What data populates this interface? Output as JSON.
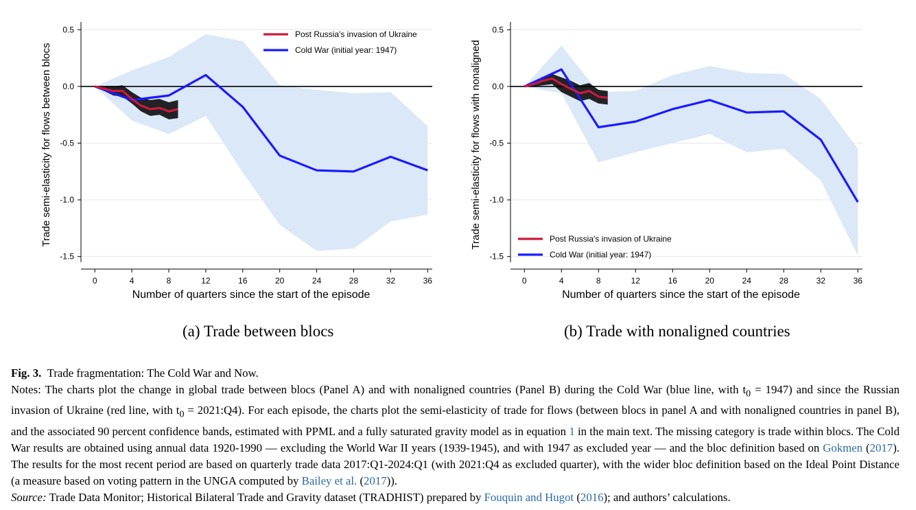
{
  "colors": {
    "cold_war": "#1a1aff",
    "post_invasion": "#cc1a3d",
    "band_cold_war": "#dbe8f8",
    "band_post": "#f0c7d2",
    "zero_line": "#000000",
    "grid": "#e6e6e6",
    "link": "#2a6aa8"
  },
  "chart_data": [
    {
      "panel_id": "a",
      "type": "line",
      "caption": "(a) Trade between blocs",
      "xlabel": "Number of quarters since the start of the episode",
      "ylabel": "Trade semi-elasticity for flows between blocs",
      "xticks": [
        "0",
        "4",
        "8",
        "12",
        "16",
        "20",
        "24",
        "28",
        "32",
        "36"
      ],
      "yticks": [
        "0.5",
        "0.0",
        "-0.5",
        "-1.0",
        "-1.5"
      ],
      "xlim": [
        -1.5,
        36.5
      ],
      "ylim": [
        -1.55,
        0.52
      ],
      "legend_position": "top-center",
      "grid": true,
      "series": [
        {
          "name": "Post Russia's invasion of Ukraine",
          "key": "post_invasion",
          "x": [
            0,
            1,
            2,
            3,
            4,
            5,
            6,
            7,
            8,
            9
          ],
          "y": [
            0.0,
            -0.02,
            -0.04,
            -0.04,
            -0.11,
            -0.17,
            -0.2,
            -0.19,
            -0.22,
            -0.2
          ],
          "band_lower": [
            0.0,
            -0.04,
            -0.08,
            -0.09,
            -0.15,
            -0.22,
            -0.26,
            -0.25,
            -0.29,
            -0.28
          ],
          "band_upper": [
            0.0,
            0.0,
            0.0,
            0.01,
            -0.05,
            -0.1,
            -0.12,
            -0.11,
            -0.14,
            -0.12
          ]
        },
        {
          "name": "Cold War (initial year: 1947)",
          "key": "cold_war",
          "x": [
            0,
            4,
            8,
            12,
            16,
            20,
            24,
            28,
            32,
            36
          ],
          "y": [
            0.0,
            -0.12,
            -0.08,
            0.1,
            -0.18,
            -0.61,
            -0.74,
            -0.75,
            -0.62,
            -0.74
          ],
          "band_lower": [
            0.0,
            -0.3,
            -0.42,
            -0.26,
            -0.76,
            -1.22,
            -1.45,
            -1.43,
            -1.19,
            -1.13
          ],
          "band_upper": [
            0.0,
            0.14,
            0.26,
            0.46,
            0.4,
            0.01,
            -0.03,
            -0.06,
            -0.05,
            -0.35
          ]
        }
      ]
    },
    {
      "panel_id": "b",
      "type": "line",
      "caption": "(b) Trade with nonaligned countries",
      "xlabel": "Number of quarters since the start of the episode",
      "ylabel": "Trade semi-elasticity for flows with nonaligned",
      "xticks": [
        "0",
        "4",
        "8",
        "12",
        "16",
        "20",
        "24",
        "28",
        "32",
        "36"
      ],
      "yticks": [
        "0.5",
        "0.0",
        "-0.5",
        "-1.0",
        "-1.5"
      ],
      "xlim": [
        -1.5,
        36.5
      ],
      "ylim": [
        -1.55,
        0.52
      ],
      "legend_position": "bottom-left",
      "grid": true,
      "series": [
        {
          "name": "Post Russia's invasion of Ukraine",
          "key": "post_invasion",
          "x": [
            0,
            1,
            2,
            3,
            4,
            5,
            6,
            7,
            8,
            9
          ],
          "y": [
            0.0,
            0.02,
            0.05,
            0.07,
            0.02,
            -0.02,
            -0.06,
            -0.04,
            -0.09,
            -0.1
          ],
          "band_lower": [
            0.0,
            0.0,
            0.01,
            0.02,
            -0.05,
            -0.09,
            -0.13,
            -0.11,
            -0.15,
            -0.16
          ],
          "band_upper": [
            0.0,
            0.04,
            0.08,
            0.11,
            0.08,
            0.05,
            0.01,
            0.03,
            -0.03,
            -0.04
          ]
        },
        {
          "name": "Cold War (initial year: 1947)",
          "key": "cold_war",
          "x": [
            0,
            4,
            8,
            12,
            16,
            20,
            24,
            28,
            32,
            36
          ],
          "y": [
            0.0,
            0.15,
            -0.36,
            -0.31,
            -0.2,
            -0.12,
            -0.23,
            -0.22,
            -0.47,
            -1.02
          ],
          "band_lower": [
            0.0,
            -0.06,
            -0.67,
            -0.58,
            -0.5,
            -0.42,
            -0.58,
            -0.55,
            -0.83,
            -1.49
          ],
          "band_upper": [
            0.0,
            0.36,
            -0.05,
            -0.04,
            0.1,
            0.18,
            0.12,
            0.11,
            -0.11,
            -0.55
          ]
        }
      ]
    }
  ],
  "figure": {
    "label": "Fig. 3.",
    "title": "Trade fragmentation: The Cold War and Now.",
    "notes": {
      "part1": "Notes: The charts plot the change in global trade between blocs (Panel A) and with nonaligned countries (Panel B) during the Cold War (blue line, with t",
      "sub0": "0",
      "eq1947": " = 1947) and since the Russian invasion of Ukraine (red line, with t",
      "sub0b": "0",
      "part2": " = 2021:Q4). For each episode, the charts plot the semi-elasticity of trade for flows (between blocs in panel A and with nonaligned countries in panel B), and the associated 90 percent confidence bands, estimated with PPML and a fully saturated gravity model as in equation ",
      "eq_ref": "1",
      "part3": " in the main text. The missing category is trade within blocs. The Cold War results are obtained using annual data 1920-1990 — excluding the World War II years (1939-1945), and with 1947 as excluded year — and the bloc definition based on ",
      "ref_gokmen": "Gokmen",
      "paren_open1": " (",
      "ref_gokmen_year": "2017",
      "part4": "). The results for the most recent period are based on quarterly trade data 2017:Q1-2024:Q1 (with 2021:Q4 as excluded quarter), with the wider bloc definition based on the Ideal Point Distance (a measure based on voting pattern in the UNGA computed by ",
      "ref_bailey": "Bailey et al.",
      "paren_open2": " (",
      "ref_bailey_year": "2017",
      "part5": "))."
    },
    "source": {
      "label": "Source:",
      "part1": " Trade Data Monitor; Historical Bilateral Trade and Gravity dataset (TRADHIST) prepared by ",
      "ref_fouquin": "Fouquin and Hugot",
      "paren_open": " (",
      "ref_fouquin_year": "2016",
      "part2": "); and authors’ calculations."
    }
  }
}
